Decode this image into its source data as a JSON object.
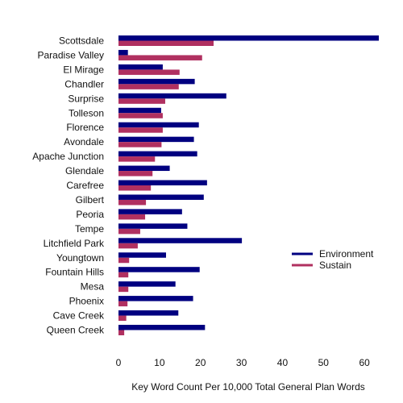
{
  "chart_data": {
    "type": "bar",
    "orientation": "horizontal",
    "categories": [
      "Scottsdale",
      "Paradise Valley",
      "El Mirage",
      "Chandler",
      "Surprise",
      "Tolleson",
      "Florence",
      "Avondale",
      "Apache Junction",
      "Glendale",
      "Carefree",
      "Gilbert",
      "Peoria",
      "Tempe",
      "Litchfield Park",
      "Youngtown",
      "Fountain Hills",
      "Mesa",
      "Phoenix",
      "Cave Creek",
      "Queen Creek"
    ],
    "series": [
      {
        "name": "Environment",
        "color": "#000080",
        "values": [
          63.5,
          2.3,
          10.8,
          18.6,
          26.3,
          10.4,
          19.6,
          18.4,
          19.2,
          12.5,
          21.6,
          20.8,
          15.5,
          16.8,
          30.1,
          11.6,
          19.8,
          13.9,
          18.2,
          14.6,
          21.1
        ]
      },
      {
        "name": "Sustain",
        "color": "#b03060",
        "values": [
          23.2,
          20.4,
          14.9,
          14.7,
          11.4,
          10.8,
          10.8,
          10.5,
          8.9,
          8.3,
          7.9,
          6.7,
          6.5,
          5.3,
          4.7,
          2.6,
          2.4,
          2.4,
          2.2,
          1.9,
          1.4
        ]
      }
    ],
    "xlabel": "Key Word Count Per 10,000 Total General Plan Words",
    "ylabel": "",
    "xlim": [
      0,
      63.7
    ],
    "xticks": [
      0,
      10,
      20,
      30,
      40,
      50,
      60
    ],
    "grid": false,
    "legend_position": "right-middle"
  }
}
